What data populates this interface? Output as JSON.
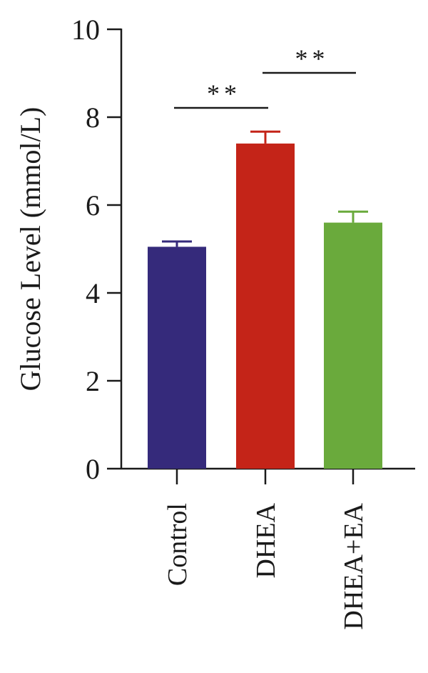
{
  "chart_data": {
    "type": "bar",
    "title": "",
    "xlabel": "",
    "ylabel": "Glucose Level (mmol/L)",
    "ylim": [
      0,
      10
    ],
    "yticks": [
      0,
      2,
      4,
      6,
      8,
      10
    ],
    "grid": false,
    "categories": [
      "Control",
      "DHEA",
      "DHEA+EA"
    ],
    "values": [
      5.05,
      7.4,
      5.6
    ],
    "errors": [
      0.12,
      0.27,
      0.25
    ],
    "colors": [
      "#352a7b",
      "#c42418",
      "#6aaa3c"
    ],
    "significance": [
      {
        "from": 0,
        "to": 1,
        "label": "**"
      },
      {
        "from": 1,
        "to": 2,
        "label": "**"
      }
    ]
  }
}
